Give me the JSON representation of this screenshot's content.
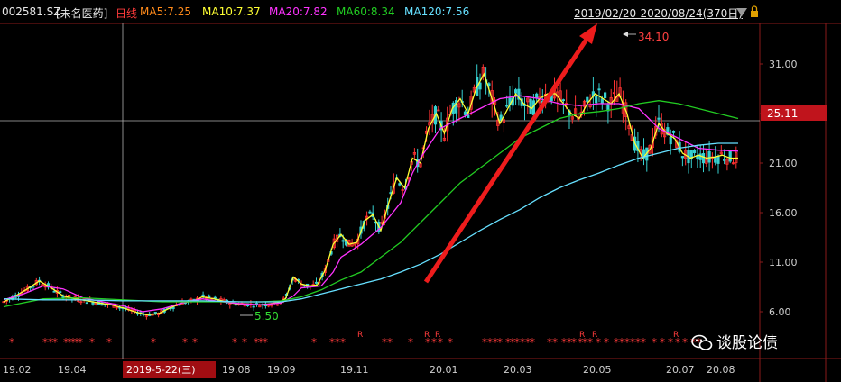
{
  "header": {
    "symbol": "002581.SZ",
    "name": "[未名医药]",
    "period": "日线",
    "ma": [
      {
        "label": "MA5:7.25",
        "color": "#ff8a1a"
      },
      {
        "label": "MA10:7.37",
        "color": "#ffff33"
      },
      {
        "label": "MA20:7.82",
        "color": "#ff33ff"
      },
      {
        "label": "MA60:8.34",
        "color": "#22cc22"
      },
      {
        "label": "MA120:7.56",
        "color": "#66e0ff"
      }
    ],
    "range": "2019/02/20-2020/08/24(370日)"
  },
  "chart_data": {
    "type": "line",
    "y_ticks": [
      6.0,
      11.0,
      16.0,
      21.0,
      26.0,
      31.0
    ],
    "y_tick_labels": [
      "6.00",
      "11.00",
      "16.00",
      "21.00",
      "",
      "31.00"
    ],
    "current_price": "25.11",
    "x_tick_labels": [
      "19.02",
      "19.04",
      "19.08",
      "19.09",
      "19.11",
      "20.01",
      "20.03",
      "20.05",
      "20.07",
      "20.08"
    ],
    "crosshair_date": "2019-5-22(三)",
    "high_annotation": "34.10",
    "low_annotation": "5.50",
    "series": [
      {
        "color": "#ffff33",
        "x": [
          0,
          6,
          12,
          18,
          24,
          30,
          36,
          42,
          48,
          54,
          60,
          66,
          72,
          78,
          84,
          90,
          96,
          100,
          106,
          110,
          114,
          118,
          122,
          126,
          130,
          134,
          138,
          142,
          146,
          150,
          154,
          158,
          162,
          166,
          170,
          174,
          178,
          182,
          186,
          190,
          194,
          198,
          202,
          206,
          210,
          214,
          218,
          222,
          226,
          230,
          234,
          238,
          242,
          246,
          250,
          254,
          258,
          262,
          266,
          270,
          274,
          278,
          282,
          286,
          290,
          294,
          298,
          302,
          306,
          310,
          314,
          318,
          322,
          326,
          330,
          334,
          338,
          342,
          346,
          350,
          354,
          358,
          362,
          366,
          370
        ],
        "values": [
          7.0,
          7.6,
          8.3,
          9.1,
          8.4,
          7.6,
          7.3,
          7.1,
          6.9,
          6.7,
          6.4,
          6.0,
          5.7,
          5.8,
          6.4,
          6.9,
          7.1,
          7.5,
          7.3,
          7.1,
          6.9,
          6.8,
          6.8,
          6.7,
          6.7,
          6.8,
          6.9,
          7.3,
          9.5,
          8.8,
          8.6,
          8.7,
          10.2,
          12.8,
          13.8,
          12.8,
          13.0,
          15.2,
          15.8,
          14.2,
          17.0,
          19.5,
          18.5,
          21.5,
          21.0,
          24.5,
          26.0,
          24.0,
          26.5,
          27.5,
          26.0,
          28.5,
          30.0,
          27.5,
          25.0,
          26.5,
          28.0,
          27.0,
          26.5,
          27.5,
          28.0,
          28.0,
          27.0,
          26.0,
          25.5,
          27.0,
          28.0,
          27.5,
          27.0,
          28.0,
          26.0,
          23.0,
          21.5,
          22.5,
          25.0,
          24.0,
          23.5,
          22.0,
          21.5,
          21.8,
          21.5,
          21.6,
          21.8,
          21.5,
          21.5
        ]
      },
      {
        "color": "#ff33ff",
        "x": [
          0,
          10,
          20,
          30,
          40,
          50,
          60,
          70,
          80,
          90,
          100,
          110,
          120,
          130,
          140,
          146,
          150,
          160,
          166,
          170,
          180,
          190,
          200,
          206,
          210,
          220,
          230,
          240,
          250,
          260,
          270,
          280,
          290,
          300,
          310,
          320,
          330,
          340,
          350,
          360,
          370
        ],
        "values": [
          7.2,
          7.8,
          8.6,
          8.3,
          7.4,
          7.0,
          6.6,
          6.0,
          6.3,
          6.9,
          7.3,
          7.0,
          6.8,
          6.7,
          6.9,
          7.6,
          8.4,
          8.6,
          10.0,
          11.5,
          12.8,
          14.5,
          17.0,
          20.0,
          21.5,
          24.5,
          25.5,
          26.5,
          27.5,
          27.8,
          27.5,
          27.0,
          26.8,
          27.0,
          27.0,
          26.5,
          24.5,
          23.5,
          22.5,
          22.3,
          22.2
        ]
      },
      {
        "color": "#22cc22",
        "x": [
          0,
          20,
          40,
          60,
          80,
          100,
          120,
          130,
          140,
          150,
          160,
          170,
          180,
          190,
          200,
          210,
          220,
          230,
          240,
          250,
          260,
          270,
          280,
          290,
          300,
          310,
          320,
          330,
          340,
          350,
          360,
          370
        ],
        "values": [
          6.5,
          7.3,
          7.4,
          7.2,
          7.0,
          7.0,
          7.0,
          7.0,
          7.1,
          7.5,
          8.2,
          9.2,
          10.0,
          11.5,
          13.0,
          15.0,
          17.0,
          19.0,
          20.5,
          22.0,
          23.5,
          24.5,
          25.5,
          26.0,
          26.2,
          26.5,
          27.0,
          27.3,
          27.0,
          26.5,
          26.0,
          25.5
        ]
      },
      {
        "color": "#66e0ff",
        "x": [
          0,
          20,
          40,
          60,
          80,
          100,
          120,
          140,
          150,
          160,
          170,
          180,
          190,
          200,
          210,
          220,
          230,
          240,
          250,
          260,
          270,
          280,
          290,
          300,
          310,
          320,
          330,
          340,
          350,
          360,
          370
        ],
        "values": [
          7.3,
          7.2,
          7.2,
          7.1,
          7.1,
          7.1,
          7.0,
          7.0,
          7.3,
          7.8,
          8.3,
          8.8,
          9.3,
          10.0,
          10.8,
          11.8,
          13.0,
          14.2,
          15.3,
          16.3,
          17.5,
          18.5,
          19.3,
          20.0,
          20.8,
          21.5,
          22.0,
          22.5,
          22.8,
          23.0,
          23.0
        ]
      }
    ]
  },
  "markers": {
    "star": "*",
    "r": "R"
  },
  "watermark": {
    "text": "谈股论债"
  }
}
